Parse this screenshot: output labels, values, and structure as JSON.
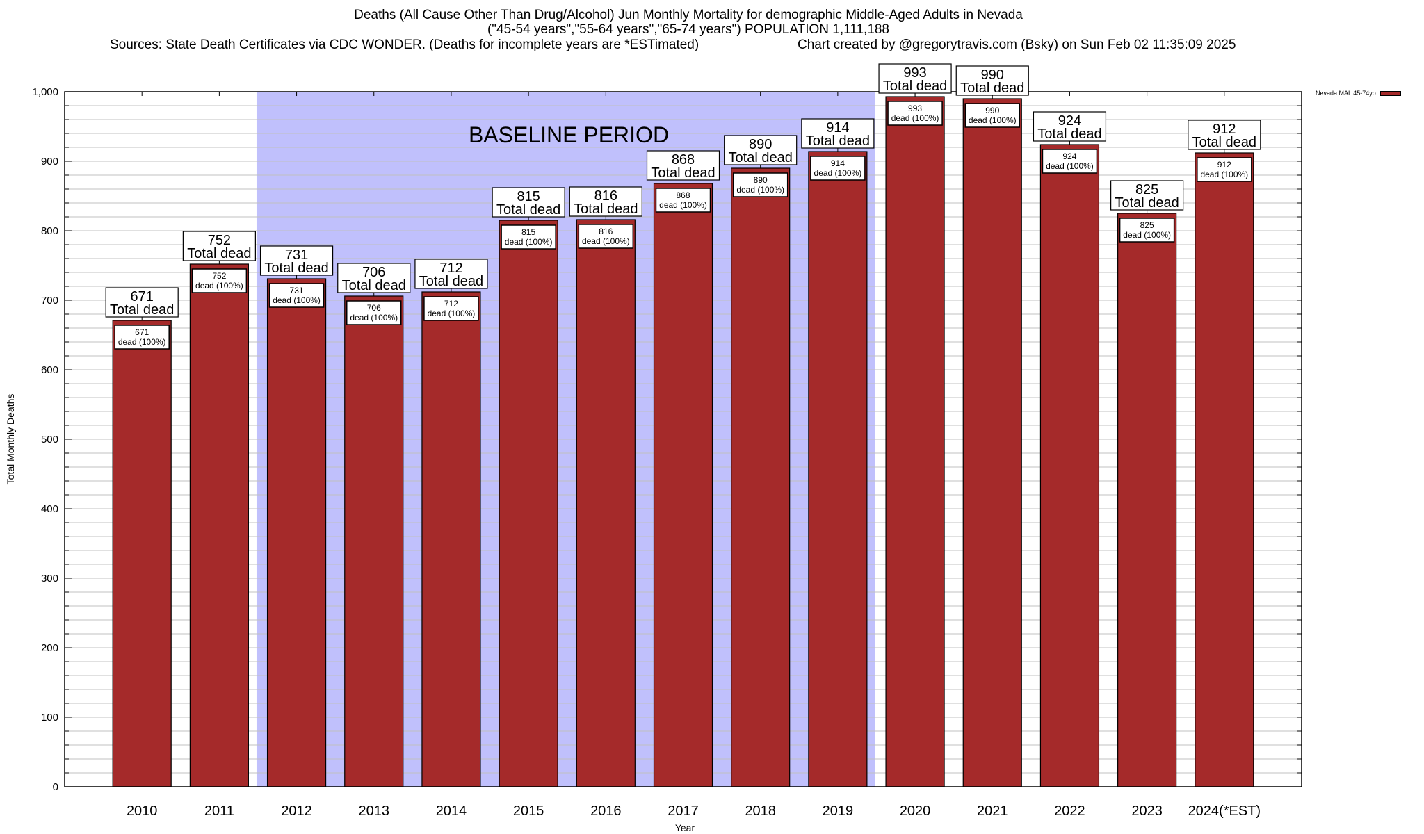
{
  "chart_data": {
    "type": "bar",
    "title": "Deaths (All Cause Other Than Drug/Alcohol) Jun Monthly Mortality for demographic Middle-Aged Adults in Nevada",
    "subtitle": "(\"45-54 years\",\"55-64 years\",\"65-74 years\") POPULATION 1,111,188",
    "sources_line": "Sources: State Death Certificates via CDC WONDER. (Deaths for incomplete years are *ESTimated)",
    "credit_line": "Chart created by @gregorytravis.com (Bsky) on Sun Feb 02 11:35:09 2025",
    "xlabel": "Year",
    "ylabel": "Total Monthly Deaths",
    "ylim": [
      0,
      1000
    ],
    "yticks": [
      0,
      100,
      200,
      300,
      400,
      500,
      600,
      700,
      800,
      900,
      1000
    ],
    "ytick_labels": [
      "0",
      "100",
      "200",
      "300",
      "400",
      "500",
      "600",
      "700",
      "800",
      "900",
      "1,000"
    ],
    "minor_tick_step": 20,
    "grid": true,
    "categories": [
      "2010",
      "2011",
      "2012",
      "2013",
      "2014",
      "2015",
      "2016",
      "2017",
      "2018",
      "2019",
      "2020",
      "2021",
      "2022",
      "2023",
      "2024(*EST)"
    ],
    "series": [
      {
        "name": "Nevada MAL 45-74yo",
        "color": "#a52a2a",
        "values": [
          671,
          752,
          731,
          706,
          712,
          815,
          816,
          868,
          890,
          914,
          993,
          990,
          924,
          825,
          912
        ]
      }
    ],
    "total_label_suffix": "Total dead",
    "inner_label_suffix": "dead (100%)",
    "baseline": {
      "label": "BASELINE PERIOD",
      "start_category": "2012",
      "end_category": "2019",
      "color": "#c0c0fc"
    },
    "legend": {
      "position": "top-right",
      "entries": [
        "Nevada MAL 45-74yo"
      ]
    }
  }
}
